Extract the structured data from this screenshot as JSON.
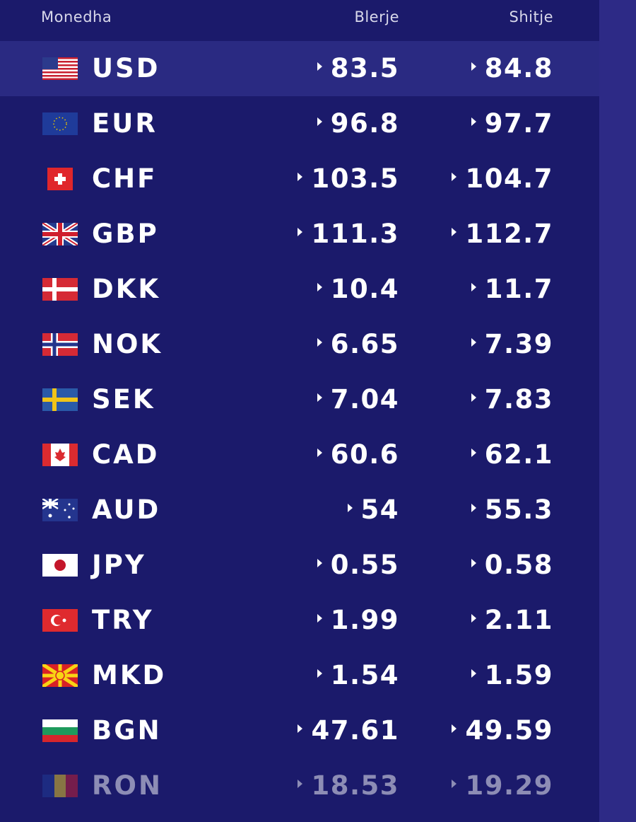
{
  "table": {
    "header": [
      "Monedha",
      "Blerje",
      "Shitje"
    ],
    "rows": [
      [
        "USD",
        "83.5",
        "84.8"
      ],
      [
        "EUR",
        "96.8",
        "97.7"
      ],
      [
        "CHF",
        "103.5",
        "104.7"
      ],
      [
        "GBP",
        "111.3",
        "112.7"
      ],
      [
        "DKK",
        "10.4",
        "11.7"
      ],
      [
        "NOK",
        "6.65",
        "7.39"
      ],
      [
        "SEK",
        "7.04",
        "7.83"
      ],
      [
        "CAD",
        "60.6",
        "62.1"
      ],
      [
        "AUD",
        "54",
        "55.3"
      ],
      [
        "JPY",
        "0.55",
        "0.58"
      ],
      [
        "TRY",
        "1.99",
        "2.11"
      ],
      [
        "MKD",
        "1.54",
        "1.59"
      ],
      [
        "BGN",
        "47.61",
        "49.59"
      ],
      [
        "RON",
        "18.53",
        "19.29"
      ]
    ]
  }
}
